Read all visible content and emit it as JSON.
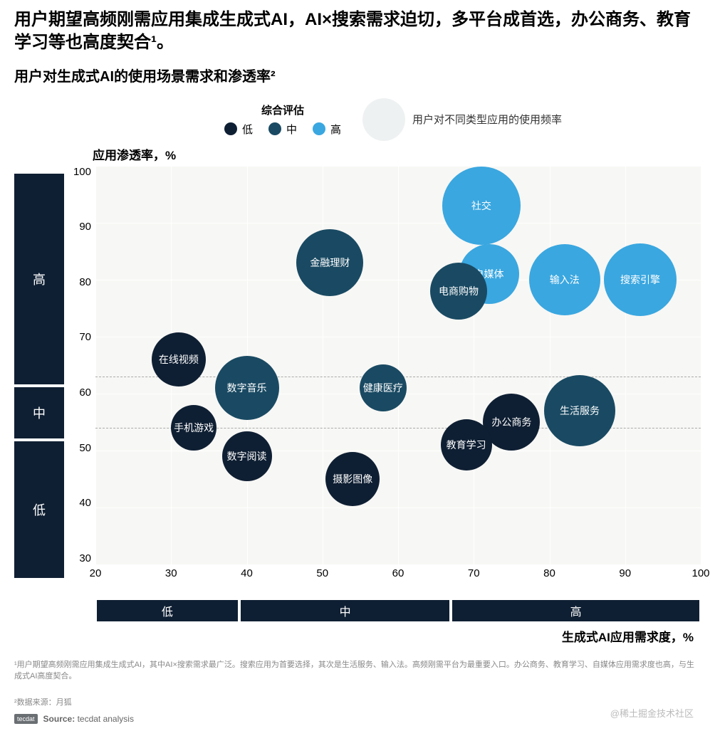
{
  "title": "用户期望高频刚需应用集成生成式AI，AI×搜索需求迫切，多平台成首选，办公商务、教育学习等也高度契合¹。",
  "subtitle": "用户对生成式AI的使用场景需求和渗透率²",
  "legend": {
    "title": "综合评估",
    "items": [
      {
        "label": "低",
        "color": "#0f1f33"
      },
      {
        "label": "中",
        "color": "#1a4a63"
      },
      {
        "label": "高",
        "color": "#3aa7e0"
      }
    ],
    "freq_label": "用户对不同类型应用的使用频率",
    "freq_color": "#eef1f2"
  },
  "chart": {
    "type": "bubble",
    "y_title": "应用渗透率，%",
    "x_title": "生成式AI应用需求度，%",
    "x_domain": [
      20,
      100
    ],
    "y_domain": [
      30,
      100
    ],
    "x_ticks": [
      20,
      30,
      40,
      50,
      60,
      70,
      80,
      90,
      100
    ],
    "y_ticks": [
      30,
      40,
      50,
      60,
      70,
      80,
      90,
      100
    ],
    "grid_color": "#ffffff",
    "plot_bg": "#f7f7f5",
    "dash_color": "#aaaaaa",
    "y_dash_lines": [
      54,
      63
    ],
    "y_bands": [
      {
        "label": "高",
        "from": 63,
        "to": 100,
        "color": "#0f1f33"
      },
      {
        "label": "中",
        "from": 54,
        "to": 63,
        "color": "#0f1f33"
      },
      {
        "label": "低",
        "from": 30,
        "to": 54,
        "color": "#0f1f33"
      }
    ],
    "x_bands": [
      {
        "label": "低",
        "from": 20,
        "to": 39,
        "color": "#0f1f33"
      },
      {
        "label": "中",
        "from": 39,
        "to": 67,
        "color": "#0f1f33"
      },
      {
        "label": "高",
        "from": 67,
        "to": 100,
        "color": "#0f1f33"
      }
    ],
    "bubbles": [
      {
        "label": "社交",
        "x": 71,
        "y": 93,
        "r": 55,
        "color": "#3aa7e0"
      },
      {
        "label": "金融理财",
        "x": 51,
        "y": 83,
        "r": 47,
        "color": "#1a4a63"
      },
      {
        "label": "自媒体",
        "x": 72,
        "y": 81,
        "r": 42,
        "color": "#3aa7e0"
      },
      {
        "label": "输入法",
        "x": 82,
        "y": 80,
        "r": 50,
        "color": "#3aa7e0"
      },
      {
        "label": "搜索引擎",
        "x": 92,
        "y": 80,
        "r": 51,
        "color": "#3aa7e0"
      },
      {
        "label": "电商购物",
        "x": 68,
        "y": 78,
        "r": 40,
        "color": "#1a4a63"
      },
      {
        "label": "在线视频",
        "x": 31,
        "y": 66,
        "r": 38,
        "color": "#0f1f33"
      },
      {
        "label": "数字音乐",
        "x": 40,
        "y": 61,
        "r": 45,
        "color": "#1a4a63"
      },
      {
        "label": "健康医疗",
        "x": 58,
        "y": 61,
        "r": 33,
        "color": "#1a4a63"
      },
      {
        "label": "生活服务",
        "x": 84,
        "y": 57,
        "r": 50,
        "color": "#1a4a63"
      },
      {
        "label": "办公商务",
        "x": 75,
        "y": 55,
        "r": 40,
        "color": "#0f1f33"
      },
      {
        "label": "手机游戏",
        "x": 33,
        "y": 54,
        "r": 32,
        "color": "#0f1f33"
      },
      {
        "label": "教育学习",
        "x": 69,
        "y": 51,
        "r": 36,
        "color": "#0f1f33"
      },
      {
        "label": "数字阅读",
        "x": 40,
        "y": 49,
        "r": 35,
        "color": "#0f1f33"
      },
      {
        "label": "摄影图像",
        "x": 54,
        "y": 45,
        "r": 38,
        "color": "#0f1f33"
      }
    ]
  },
  "footnote1": "¹用户期望高频刚需应用集成生成式AI，其中AI×搜索需求最广泛。搜索应用为首要选择，其次是生活服务、输入法。高频刚需平台为最重要入口。办公商务、教育学习、自媒体应用需求度也高，与生成式AI高度契合。",
  "footnote2": "²数据来源：月狐",
  "source_logo": "tecdat",
  "source_label": "Source:",
  "source_value": "tecdat analysis",
  "watermark": "@稀土掘金技术社区"
}
